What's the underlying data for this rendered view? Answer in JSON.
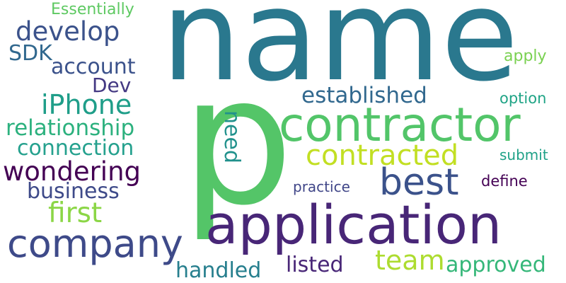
{
  "words": {
    "name": {
      "text": "name",
      "color": "#2a788e"
    },
    "p": {
      "text": "p",
      "color": "#54c568"
    },
    "application": {
      "text": "application",
      "color": "#482677"
    },
    "contractor": {
      "text": "contractor",
      "color": "#52c569"
    },
    "company": {
      "text": "company",
      "color": "#3e4a89"
    },
    "best": {
      "text": "best",
      "color": "#3b528b"
    },
    "contracted": {
      "text": "contracted",
      "color": "#c2df23"
    },
    "wondering": {
      "text": "wondering",
      "color": "#440154"
    },
    "develop": {
      "text": "develop",
      "color": "#3b528b"
    },
    "iphone": {
      "text": "iPhone",
      "color": "#1f9e89"
    },
    "first": {
      "text": "first",
      "color": "#8bd646"
    },
    "team": {
      "text": "team",
      "color": "#addc30"
    },
    "relationship": {
      "text": "relationship",
      "color": "#2cb17e"
    },
    "connection": {
      "text": "connection",
      "color": "#25a18e"
    },
    "established": {
      "text": "established",
      "color": "#31688e"
    },
    "business": {
      "text": "business",
      "color": "#3e4a89"
    },
    "account": {
      "text": "account",
      "color": "#3b528b"
    },
    "approved": {
      "text": "approved",
      "color": "#35b779"
    },
    "listed": {
      "text": "listed",
      "color": "#482677"
    },
    "handled": {
      "text": "handled",
      "color": "#277f8e"
    },
    "need": {
      "text": "need",
      "color": "#21918c"
    },
    "sdk": {
      "text": "SDK",
      "color": "#31688e"
    },
    "dev": {
      "text": "Dev",
      "color": "#443983"
    },
    "essentially": {
      "text": "Essentially",
      "color": "#5ec962"
    },
    "practice": {
      "text": "practice",
      "color": "#404688"
    },
    "define": {
      "text": "define",
      "color": "#440154"
    },
    "submit": {
      "text": "submit",
      "color": "#1fa187"
    },
    "option": {
      "text": "option",
      "color": "#20a486"
    },
    "apply": {
      "text": "apply",
      "color": "#7ad151"
    }
  }
}
